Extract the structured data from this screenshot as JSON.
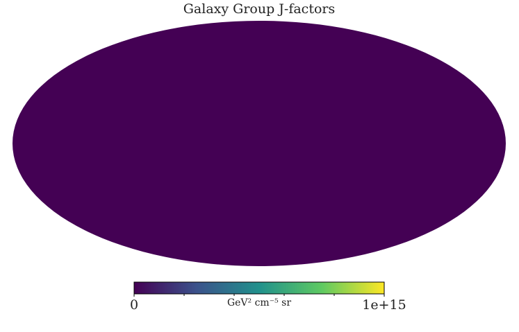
{
  "chart_data": {
    "type": "skymap",
    "title": "Galaxy Group J-factors",
    "projection": "mollweide",
    "background_color": "#440154",
    "colorbar": {
      "label": "GeV² cm⁻⁵ sr",
      "lim": [
        0,
        1000000000000000.0
      ],
      "ticks": [
        0,
        {
          "value": 1000000000000000.0,
          "label": "1e+15"
        }
      ],
      "minor_ticks": [
        200000000000000.0,
        400000000000000.0,
        600000000000000.0,
        800000000000000.0
      ],
      "colormap": [
        "#440154",
        "#3b528b",
        "#21918c",
        "#5ec962",
        "#fde725"
      ]
    }
  }
}
